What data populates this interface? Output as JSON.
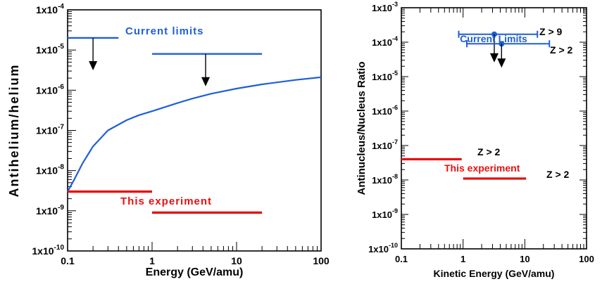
{
  "chart_data": [
    {
      "type": "line",
      "xlabel": "Energy (GeV/amu)",
      "ylabel": "Antihelium/helium",
      "xscale": "log",
      "yscale": "log",
      "xlim": [
        0.1,
        100
      ],
      "ylim": [
        1e-10,
        0.0001
      ],
      "x_ticks": [
        {
          "value": 0.1,
          "label": "0.1"
        },
        {
          "value": 1,
          "label": "1"
        },
        {
          "value": 10,
          "label": "10"
        },
        {
          "value": 100,
          "label": "100"
        }
      ],
      "y_ticks": [
        {
          "value": 0.0001,
          "base": "1x10",
          "exp": "-4"
        },
        {
          "value": 1e-05,
          "base": "1x10",
          "exp": "-5"
        },
        {
          "value": 1e-06,
          "base": "1x10",
          "exp": "-6"
        },
        {
          "value": 1e-07,
          "base": "1x10",
          "exp": "-7"
        },
        {
          "value": 1e-08,
          "base": "1x10",
          "exp": "-8"
        },
        {
          "value": 1e-09,
          "base": "1x10",
          "exp": "-9"
        },
        {
          "value": 1e-10,
          "base": "1x10",
          "exp": "-10"
        }
      ],
      "current_limits": {
        "label": "Current limits",
        "color": "#1f5fd6",
        "segments": [
          {
            "x": [
              0.1,
              0.4
            ],
            "y": 2e-05
          },
          {
            "x": [
              1,
              20
            ],
            "y": 8e-06
          }
        ]
      },
      "this_experiment": {
        "label": "This experiment",
        "color": "#e81010",
        "segments": [
          {
            "x": [
              0.1,
              1
            ],
            "y": 3e-09
          },
          {
            "x": [
              1,
              20
            ],
            "y": 9e-10
          }
        ]
      },
      "curve": {
        "color": "#1f5fd6",
        "points": [
          [
            0.1,
            3e-09
          ],
          [
            0.12,
            6e-09
          ],
          [
            0.15,
            1.5e-08
          ],
          [
            0.2,
            4e-08
          ],
          [
            0.3,
            1e-07
          ],
          [
            0.5,
            1.8e-07
          ],
          [
            0.7,
            2.4e-07
          ],
          [
            1,
            3e-07
          ],
          [
            2,
            4.8e-07
          ],
          [
            3,
            6.2e-07
          ],
          [
            5,
            8.2e-07
          ],
          [
            10,
            1.1e-06
          ],
          [
            20,
            1.4e-06
          ],
          [
            50,
            1.8e-06
          ],
          [
            100,
            2.1e-06
          ]
        ]
      }
    },
    {
      "type": "scatter",
      "xlabel": "Kinetic Energy (GeV/amu)",
      "ylabel": "Antinucleus/Nucleus Ratio",
      "xscale": "log",
      "yscale": "log",
      "xlim": [
        0.1,
        100
      ],
      "ylim": [
        1e-10,
        0.001
      ],
      "x_ticks": [
        {
          "value": 0.1,
          "label": "0.1"
        },
        {
          "value": 1,
          "label": "1"
        },
        {
          "value": 10,
          "label": "10"
        },
        {
          "value": 100,
          "label": "100"
        }
      ],
      "y_ticks": [
        {
          "value": 0.001,
          "base": "1x10",
          "exp": "-3"
        },
        {
          "value": 0.0001,
          "base": "1x10",
          "exp": "-4"
        },
        {
          "value": 1e-05,
          "base": "1x10",
          "exp": "-5"
        },
        {
          "value": 1e-06,
          "base": "1x10",
          "exp": "-6"
        },
        {
          "value": 1e-07,
          "base": "1x10",
          "exp": "-7"
        },
        {
          "value": 1e-08,
          "base": "1x10",
          "exp": "-8"
        },
        {
          "value": 1e-09,
          "base": "1x10",
          "exp": "-9"
        },
        {
          "value": 1e-10,
          "base": "1x10",
          "exp": "-10"
        }
      ],
      "current_limits": {
        "label": "Current Limits",
        "color": "#1f5fd6",
        "points": [
          {
            "x": 3.2,
            "y": 0.00017,
            "xerr": [
              0.85,
              16
            ],
            "label": "Z > 9"
          },
          {
            "x": 4.2,
            "y": 9e-05,
            "xerr": [
              1.15,
              25
            ],
            "label": "Z > 2"
          }
        ]
      },
      "this_experiment": {
        "label": "This experiment",
        "color": "#e81010",
        "segments": [
          {
            "x": [
              0.1,
              0.95
            ],
            "y": 4e-08,
            "label": "Z > 2"
          },
          {
            "x": [
              1,
              10.5
            ],
            "y": 1.1e-08,
            "label": "Z > 2"
          }
        ]
      }
    }
  ]
}
